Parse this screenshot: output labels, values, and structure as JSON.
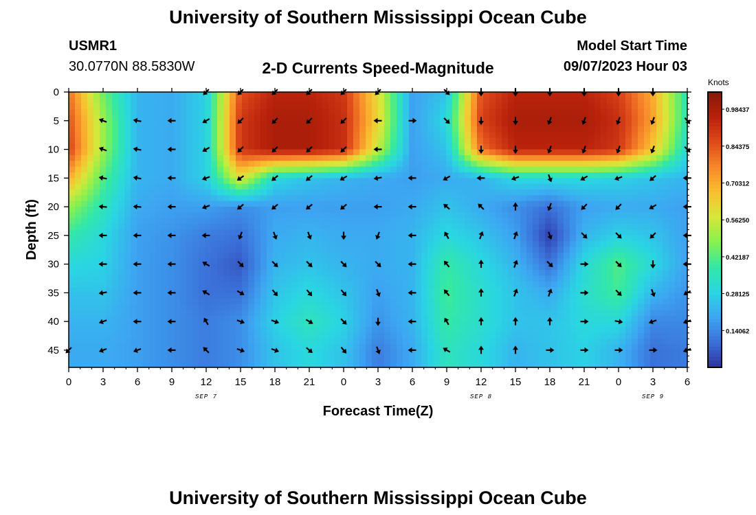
{
  "title": "University of Southern Mississippi Ocean Cube",
  "station": {
    "name": "USMR1",
    "coords": "30.0770N  88.5830W"
  },
  "subtitle": "2-D Currents Speed-Magnitude",
  "model": {
    "label": "Model Start Time",
    "time": "09/07/2023 Hour 03"
  },
  "footer_title": "University of Southern Mississippi Ocean Cube",
  "chart_data": {
    "type": "heatmap",
    "title": "2-D Currents Speed-Magnitude",
    "xlabel": "Forecast Time(Z)",
    "ylabel": "Depth (ft)",
    "x_ticks": [
      "0",
      "3",
      "6",
      "9",
      "12",
      "15",
      "18",
      "21",
      "0",
      "3",
      "6",
      "9",
      "12",
      "15",
      "18",
      "21",
      "0",
      "3",
      "6"
    ],
    "x_range": [
      0,
      54
    ],
    "y_ticks": [
      0,
      5,
      10,
      15,
      20,
      25,
      30,
      35,
      40,
      45
    ],
    "y_range": [
      0,
      48
    ],
    "y_reversed": true,
    "date_labels": [
      {
        "label": "SEP 7",
        "at": 12
      },
      {
        "label": "SEP 8",
        "at": 36
      },
      {
        "label": "SEP 9",
        "at": 51
      }
    ],
    "colorbar": {
      "title": "Knots",
      "range": [
        0,
        1.05
      ],
      "ticks": [
        "0.98437",
        "0.84375",
        "0.70312",
        "0.56250",
        "0.42187",
        "0.28125",
        "0.14062"
      ],
      "tick_values": [
        0.98437,
        0.84375,
        0.70312,
        0.5625,
        0.42187,
        0.28125,
        0.14062
      ],
      "colors": [
        "#2d33a0",
        "#3b6fd8",
        "#3da6f2",
        "#2ad5e3",
        "#33e8a6",
        "#86f04f",
        "#d6e83a",
        "#f9c030",
        "#f8872a",
        "#de4a1a",
        "#b8210b",
        "#861a08"
      ]
    },
    "grid_x": [
      0,
      3,
      6,
      9,
      12,
      15,
      18,
      21,
      24,
      27,
      30,
      33,
      36,
      39,
      42,
      45,
      48,
      51,
      54
    ],
    "grid_y": [
      0,
      5,
      10,
      15,
      20,
      25,
      30,
      35,
      40,
      45
    ],
    "speed_knots": [
      [
        0.8,
        0.45,
        0.22,
        0.2,
        0.28,
        0.85,
        0.95,
        0.95,
        0.9,
        0.6,
        0.18,
        0.25,
        0.85,
        0.95,
        0.95,
        0.95,
        0.88,
        0.7,
        0.35
      ],
      [
        0.85,
        0.5,
        0.22,
        0.2,
        0.28,
        0.9,
        0.98,
        0.98,
        0.92,
        0.62,
        0.18,
        0.3,
        0.88,
        0.98,
        0.98,
        0.98,
        0.92,
        0.72,
        0.35
      ],
      [
        0.88,
        0.5,
        0.22,
        0.2,
        0.28,
        0.9,
        0.98,
        0.98,
        0.92,
        0.55,
        0.18,
        0.25,
        0.8,
        0.95,
        0.95,
        0.95,
        0.9,
        0.65,
        0.3
      ],
      [
        0.7,
        0.42,
        0.22,
        0.2,
        0.28,
        0.6,
        0.3,
        0.25,
        0.22,
        0.2,
        0.18,
        0.2,
        0.22,
        0.3,
        0.3,
        0.3,
        0.28,
        0.25,
        0.22
      ],
      [
        0.5,
        0.35,
        0.2,
        0.18,
        0.18,
        0.15,
        0.18,
        0.18,
        0.18,
        0.18,
        0.2,
        0.25,
        0.2,
        0.15,
        0.1,
        0.18,
        0.2,
        0.2,
        0.18
      ],
      [
        0.38,
        0.3,
        0.18,
        0.16,
        0.12,
        0.1,
        0.2,
        0.22,
        0.2,
        0.2,
        0.22,
        0.3,
        0.25,
        0.18,
        0.02,
        0.22,
        0.28,
        0.25,
        0.18
      ],
      [
        0.3,
        0.28,
        0.18,
        0.15,
        0.1,
        0.06,
        0.22,
        0.25,
        0.22,
        0.2,
        0.22,
        0.38,
        0.3,
        0.22,
        0.1,
        0.3,
        0.42,
        0.3,
        0.18
      ],
      [
        0.25,
        0.25,
        0.18,
        0.15,
        0.1,
        0.1,
        0.25,
        0.3,
        0.25,
        0.18,
        0.22,
        0.4,
        0.32,
        0.25,
        0.2,
        0.32,
        0.4,
        0.22,
        0.16
      ],
      [
        0.22,
        0.22,
        0.18,
        0.15,
        0.12,
        0.15,
        0.28,
        0.35,
        0.28,
        0.16,
        0.22,
        0.38,
        0.32,
        0.25,
        0.25,
        0.3,
        0.3,
        0.14,
        0.14
      ],
      [
        0.2,
        0.2,
        0.18,
        0.15,
        0.12,
        0.15,
        0.25,
        0.3,
        0.25,
        0.12,
        0.2,
        0.35,
        0.3,
        0.22,
        0.25,
        0.28,
        0.22,
        0.1,
        0.12
      ]
    ],
    "direction_deg": [
      [
        null,
        null,
        null,
        null,
        225,
        225,
        225,
        225,
        225,
        225,
        null,
        135,
        180,
        180,
        180,
        180,
        180,
        180,
        null
      ],
      [
        null,
        290,
        280,
        270,
        240,
        225,
        225,
        225,
        225,
        270,
        90,
        135,
        180,
        180,
        200,
        200,
        200,
        200,
        140
      ],
      [
        null,
        290,
        280,
        270,
        240,
        225,
        225,
        225,
        225,
        270,
        null,
        null,
        180,
        180,
        200,
        200,
        200,
        200,
        135
      ],
      [
        null,
        280,
        280,
        270,
        250,
        235,
        230,
        230,
        240,
        260,
        270,
        240,
        270,
        250,
        160,
        240,
        250,
        230,
        270
      ],
      [
        null,
        275,
        275,
        270,
        250,
        230,
        230,
        230,
        230,
        270,
        270,
        310,
        315,
        0,
        200,
        225,
        225,
        240,
        270
      ],
      [
        null,
        270,
        270,
        270,
        270,
        200,
        160,
        160,
        180,
        200,
        270,
        330,
        20,
        20,
        160,
        135,
        135,
        225,
        270
      ],
      [
        null,
        270,
        270,
        270,
        300,
        135,
        135,
        135,
        135,
        135,
        270,
        320,
        0,
        20,
        135,
        90,
        135,
        180,
        270
      ],
      [
        null,
        260,
        270,
        270,
        300,
        120,
        140,
        140,
        140,
        160,
        270,
        320,
        0,
        20,
        20,
        90,
        135,
        160,
        240
      ],
      [
        null,
        250,
        270,
        270,
        330,
        110,
        110,
        120,
        135,
        180,
        270,
        330,
        0,
        0,
        0,
        90,
        100,
        250,
        250
      ],
      [
        225,
        250,
        250,
        270,
        315,
        110,
        110,
        130,
        140,
        160,
        270,
        300,
        0,
        0,
        90,
        90,
        90,
        90,
        250
      ]
    ]
  }
}
